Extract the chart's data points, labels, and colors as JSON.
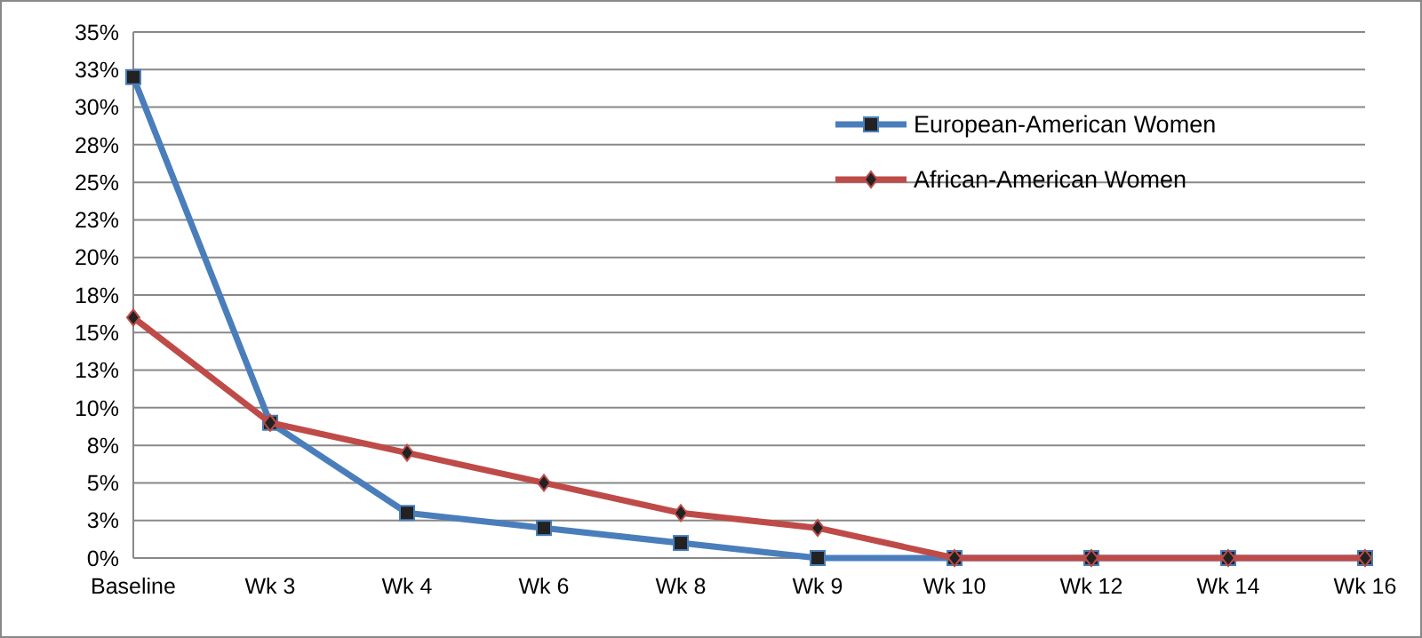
{
  "chart_data": {
    "type": "line",
    "categories": [
      "Baseline",
      "Wk 3",
      "Wk 4",
      "Wk 6",
      "Wk 8",
      "Wk 9",
      "Wk 10",
      "Wk 12",
      "Wk 14",
      "Wk 16"
    ],
    "series": [
      {
        "name": "European-American Women",
        "color": "#4a7ebb",
        "marker": "square",
        "values": [
          32,
          9,
          3,
          2,
          1,
          0,
          0,
          0,
          0,
          0
        ]
      },
      {
        "name": "African-American Women",
        "color": "#be4b48",
        "marker": "diamond",
        "values": [
          16,
          9,
          7,
          5,
          3,
          2,
          0,
          0,
          0,
          0
        ]
      }
    ],
    "ylim": [
      0,
      35
    ],
    "yticks": [
      {
        "value": 0,
        "label": "0%"
      },
      {
        "value": 2.5,
        "label": "3%"
      },
      {
        "value": 5,
        "label": "5%"
      },
      {
        "value": 7.5,
        "label": "8%"
      },
      {
        "value": 10,
        "label": "10%"
      },
      {
        "value": 12.5,
        "label": "13%"
      },
      {
        "value": 15,
        "label": "15%"
      },
      {
        "value": 17.5,
        "label": "18%"
      },
      {
        "value": 20,
        "label": "20%"
      },
      {
        "value": 22.5,
        "label": "23%"
      },
      {
        "value": 25,
        "label": "25%"
      },
      {
        "value": 27.5,
        "label": "28%"
      },
      {
        "value": 30,
        "label": "30%"
      },
      {
        "value": 32.5,
        "label": "33%"
      },
      {
        "value": 35,
        "label": "35%"
      }
    ],
    "grid": "y",
    "legend": "top right",
    "line_style": "solid"
  }
}
